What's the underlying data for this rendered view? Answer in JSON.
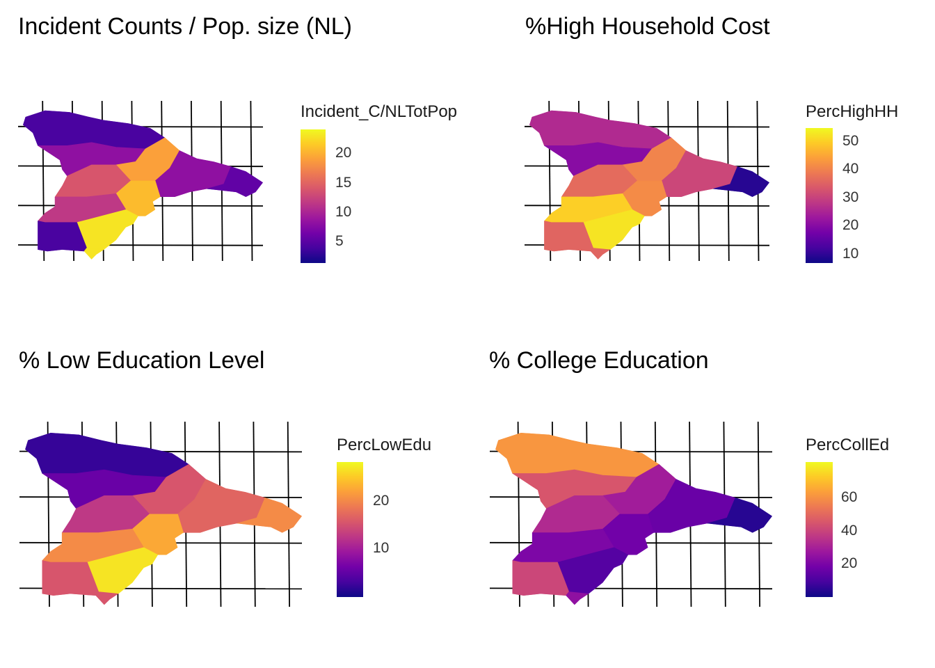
{
  "palette": [
    "#0d0887",
    "#46039f",
    "#7201a8",
    "#9c179e",
    "#bd3786",
    "#d8576b",
    "#ed7953",
    "#fb9f3a",
    "#fdca26",
    "#f0f921"
  ],
  "panels": [
    {
      "title": "Incident Counts / Pop. size (NL)",
      "legend_title": "Incident_C/NLTotPop",
      "legend_ticks": [
        "20",
        "15",
        "10",
        "5"
      ],
      "value_range": [
        2,
        24
      ]
    },
    {
      "title": "%High Household Cost",
      "legend_title": "PercHighHH",
      "legend_ticks": [
        "50",
        "40",
        "30",
        "20",
        "10"
      ],
      "value_range": [
        7,
        55
      ]
    },
    {
      "title": "% Low Education Level",
      "legend_title": "PercLowEdu",
      "legend_ticks": [
        "20",
        "10"
      ],
      "value_range": [
        0,
        28
      ]
    },
    {
      "title": "% College Education",
      "legend_title": "PercCollEd",
      "legend_ticks": [
        "60",
        "40",
        "20"
      ],
      "value_range": [
        0,
        80
      ]
    }
  ]
}
